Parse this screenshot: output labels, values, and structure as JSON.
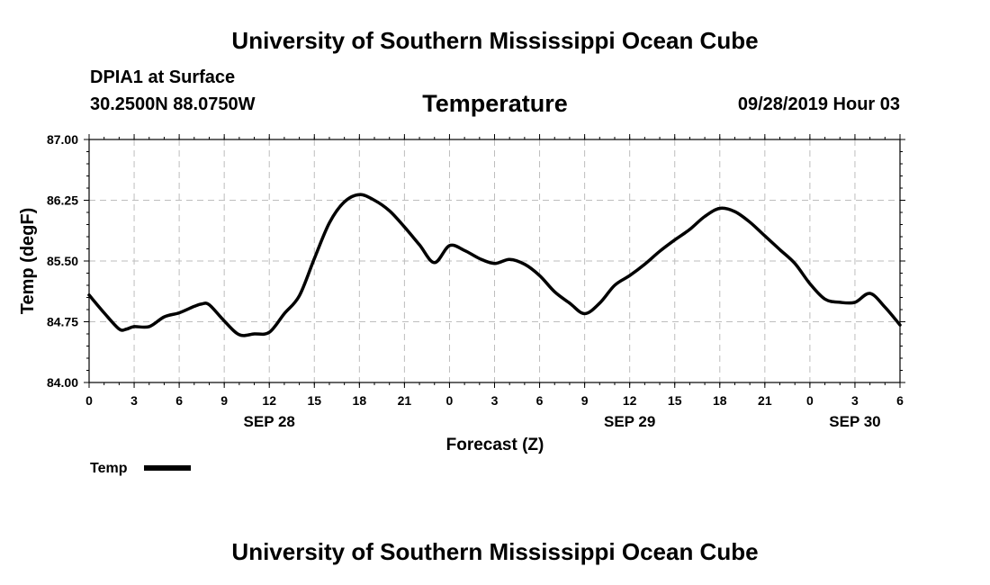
{
  "header": {
    "title": "University of Southern Mississippi Ocean Cube",
    "station": "DPIA1 at Surface",
    "coords": "30.2500N 88.0750W",
    "variable": "Temperature",
    "datetime": "09/28/2019 Hour 03"
  },
  "footer": {
    "title": "University of Southern Mississippi Ocean Cube"
  },
  "chart_data": {
    "type": "line",
    "title": "Temperature",
    "xlabel": "Forecast (Z)",
    "ylabel": "Temp (degF)",
    "ylim": [
      84.0,
      87.0
    ],
    "xlim": [
      0,
      54
    ],
    "grid": true,
    "yticks": [
      84.0,
      84.75,
      85.5,
      86.25,
      87.0
    ],
    "ytick_labels": [
      "84.00",
      "84.75",
      "85.50",
      "86.25",
      "87.00"
    ],
    "xticks": [
      0,
      3,
      6,
      9,
      12,
      15,
      18,
      21,
      24,
      27,
      30,
      33,
      36,
      39,
      42,
      45,
      48,
      51,
      54
    ],
    "xtick_labels": [
      "0",
      "3",
      "6",
      "9",
      "12",
      "15",
      "18",
      "21",
      "0",
      "3",
      "6",
      "9",
      "12",
      "15",
      "18",
      "21",
      "0",
      "3",
      "6"
    ],
    "day_labels": [
      {
        "x": 12,
        "label": "SEP 28"
      },
      {
        "x": 36,
        "label": "SEP 29"
      },
      {
        "x": 51,
        "label": "SEP 30"
      }
    ],
    "legend": {
      "label": "Temp",
      "color": "#000000",
      "position": "bottom-left"
    },
    "series": [
      {
        "name": "Temp",
        "color": "#000000",
        "x": [
          0,
          1,
          2,
          2.5,
          3,
          4,
          5,
          6,
          7,
          7.5,
          8,
          9,
          10,
          11,
          12,
          13,
          14,
          15,
          16,
          17,
          18,
          19,
          20,
          21,
          22,
          23,
          24,
          25,
          26,
          27,
          28,
          29,
          30,
          31,
          32,
          33,
          34,
          35,
          36,
          37,
          38,
          39,
          40,
          41,
          42,
          43,
          44,
          45,
          46,
          47,
          48,
          49,
          50,
          51,
          52,
          53,
          54
        ],
        "values": [
          85.08,
          84.86,
          84.66,
          84.66,
          84.69,
          84.69,
          84.81,
          84.86,
          84.94,
          84.97,
          84.96,
          84.76,
          84.59,
          84.6,
          84.62,
          84.85,
          85.07,
          85.53,
          85.97,
          86.23,
          86.32,
          86.25,
          86.12,
          85.92,
          85.7,
          85.48,
          85.69,
          85.63,
          85.53,
          85.47,
          85.52,
          85.46,
          85.32,
          85.12,
          84.98,
          84.85,
          84.98,
          85.2,
          85.32,
          85.46,
          85.62,
          85.76,
          85.89,
          86.05,
          86.15,
          86.11,
          85.98,
          85.81,
          85.64,
          85.47,
          85.22,
          85.03,
          84.99,
          84.99,
          85.1,
          84.93,
          84.71
        ]
      }
    ]
  }
}
